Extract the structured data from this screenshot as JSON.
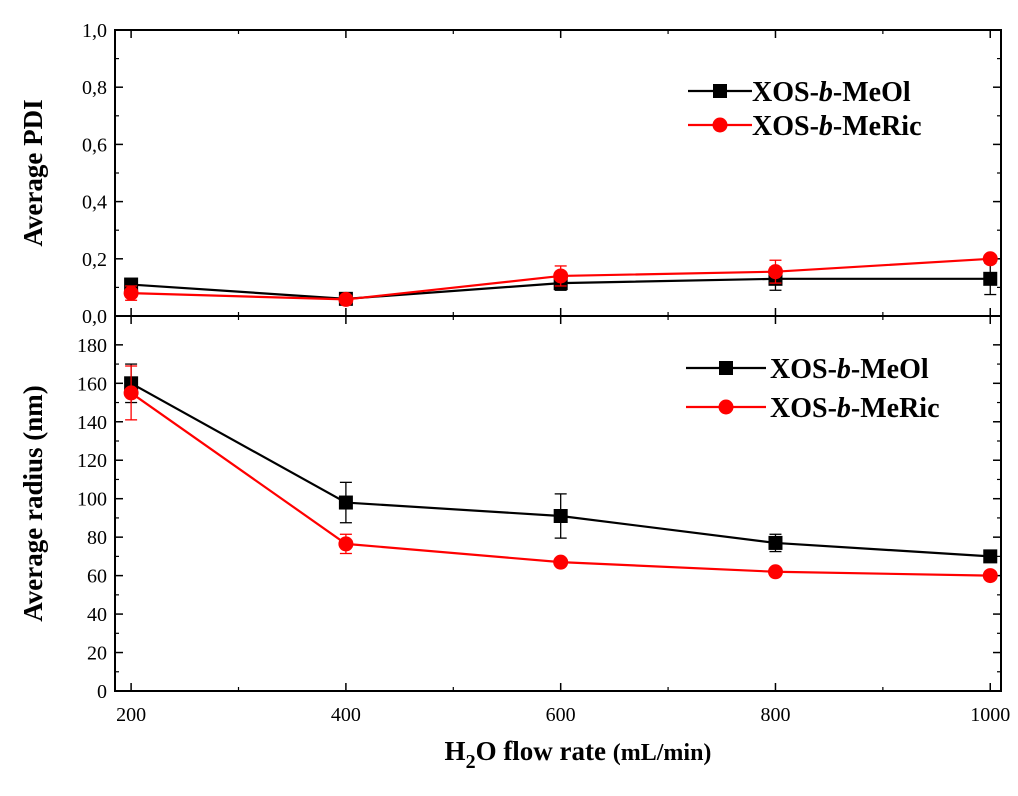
{
  "chart_data": [
    {
      "type": "line",
      "panel": "top",
      "ylabel": "Average PDI",
      "ylim": [
        0,
        1.0
      ],
      "yticks": [
        "0,0",
        "0,2",
        "0,4",
        "0,6",
        "0,8",
        "1,0"
      ],
      "yticks_values": [
        0,
        0.2,
        0.4,
        0.6,
        0.8,
        1.0
      ],
      "legend_position": "top-right",
      "x": [
        200,
        400,
        600,
        800,
        1000
      ],
      "series": [
        {
          "name": "XOS-b-MeOl",
          "name_parts": [
            "XOS-",
            "b",
            "-MeOl"
          ],
          "color": "#000000",
          "marker": "square",
          "values": [
            0.11,
            0.06,
            0.115,
            0.13,
            0.13
          ],
          "errors": [
            0.015,
            0.008,
            0.025,
            0.04,
            0.055
          ]
        },
        {
          "name": "XOS-b-MeRic",
          "name_parts": [
            "XOS-",
            "b",
            "-MeRic"
          ],
          "color": "#ff0000",
          "marker": "circle",
          "values": [
            0.08,
            0.058,
            0.14,
            0.155,
            0.2
          ],
          "errors": [
            0.025,
            0.008,
            0.035,
            0.04,
            0.012
          ]
        }
      ]
    },
    {
      "type": "line",
      "panel": "bottom",
      "xlabel": "H2O flow rate (mL/min)",
      "xlabel_parts": [
        "H",
        "2",
        "O flow rate ",
        "(mL/min)"
      ],
      "ylabel": "Average radius (nm)",
      "xlim": [
        185,
        1010
      ],
      "ylim": [
        0,
        195
      ],
      "xticks": [
        "200",
        "400",
        "600",
        "800",
        "1000"
      ],
      "xticks_values": [
        200,
        400,
        600,
        800,
        1000
      ],
      "yticks": [
        "0",
        "20",
        "40",
        "60",
        "80",
        "100",
        "120",
        "140",
        "160",
        "180"
      ],
      "yticks_values": [
        0,
        20,
        40,
        60,
        80,
        100,
        120,
        140,
        160,
        180
      ],
      "legend_position": "top-right",
      "x": [
        200,
        400,
        600,
        800,
        1000
      ],
      "series": [
        {
          "name": "XOS-b-MeOl",
          "name_parts": [
            "XOS-",
            "b",
            "-MeOl"
          ],
          "color": "#000000",
          "marker": "square",
          "values": [
            160,
            98,
            91,
            77,
            70
          ],
          "errors": [
            10,
            10.5,
            11.5,
            4.5,
            1.5
          ]
        },
        {
          "name": "XOS-b-MeRic",
          "name_parts": [
            "XOS-",
            "b",
            "-MeRic"
          ],
          "color": "#ff0000",
          "marker": "circle",
          "values": [
            155,
            76.5,
            67,
            62,
            60
          ],
          "errors": [
            14,
            5,
            1.5,
            1,
            1
          ]
        }
      ]
    }
  ]
}
